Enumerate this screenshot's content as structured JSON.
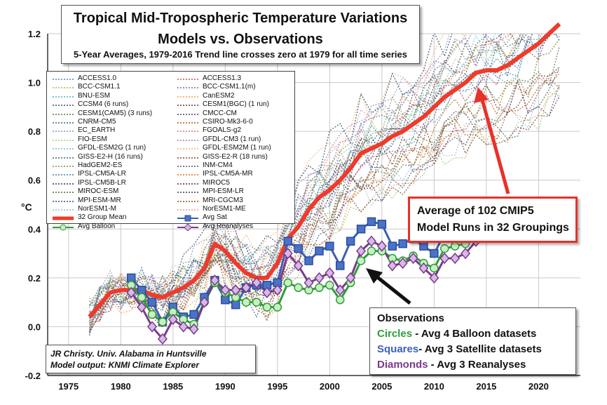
{
  "title": {
    "line1": "Tropical Mid-Tropospheric Temperature Variations",
    "line2": "Models vs. Observations",
    "subtitle": "5-Year Averages, 1979-2016 Trend line crosses zero at 1979 for all time series"
  },
  "callout": {
    "line1": "Average of 102 CMIP5",
    "line2": "Model Runs in 32 Groupings"
  },
  "observations_box": {
    "heading": "Observations",
    "rows": [
      {
        "key": "Circles",
        "desc": " - Avg 4 Balloon datasets",
        "color": "#2f9e3a"
      },
      {
        "key": "Squares",
        "desc": "- Avg 3 Satellite datasets",
        "color": "#3a5fb5"
      },
      {
        "key": "Diamonds",
        "desc": " - Avg 3 Reanalyses",
        "color": "#7a3a8c"
      }
    ]
  },
  "credit": {
    "line1": "JR Christy. Univ. Alabama in Huntsville",
    "line2": "Model output: KNMI Climate Explorer"
  },
  "legend": {
    "models": [
      {
        "name": "ACCESS1.0",
        "color": "#4f81bd"
      },
      {
        "name": "ACCESS1.3",
        "color": "#c0504d"
      },
      {
        "name": "BCC-CSM1.1",
        "color": "#9bbb59"
      },
      {
        "name": "BCC-CSM1.1(m)",
        "color": "#8064a2"
      },
      {
        "name": "BNU-ESM",
        "color": "#4bacc6"
      },
      {
        "name": "CanESM2",
        "color": "#f79646"
      },
      {
        "name": "CCSM4 (6 runs)",
        "color": "#2c4d75"
      },
      {
        "name": "CESM1(BGC) (1 run)",
        "color": "#772c2a"
      },
      {
        "name": "CESM1(CAM5) (3 runs)",
        "color": "#5f7530"
      },
      {
        "name": "CMCC-CM",
        "color": "#4d3b62"
      },
      {
        "name": "CNRM-CM5",
        "color": "#276a7c"
      },
      {
        "name": "CSIRO-Mk3-6-0",
        "color": "#b65708"
      },
      {
        "name": "EC_EARTH",
        "color": "#729aca"
      },
      {
        "name": "FGOALS-g2",
        "color": "#cd7371"
      },
      {
        "name": "FIO-ESM",
        "color": "#afc97a"
      },
      {
        "name": "GFDL-CM3 (1 run)",
        "color": "#9983b5"
      },
      {
        "name": "GFDL-ESM2G (1 run)",
        "color": "#6fbdd1"
      },
      {
        "name": "GFDL-ESM2M (1 run)",
        "color": "#f9ab6b"
      },
      {
        "name": "GISS-E2-H (16 runs)",
        "color": "#3a5f8f"
      },
      {
        "name": "GISS-E2-R (18 runs)",
        "color": "#953734"
      },
      {
        "name": "HadGEM2-ES",
        "color": "#76923c"
      },
      {
        "name": "INM-CM4",
        "color": "#5f497a"
      },
      {
        "name": "IPSL-CM5A-LR",
        "color": "#31859b"
      },
      {
        "name": "IPSL-CM5A-MR",
        "color": "#e36c09"
      },
      {
        "name": "IPSL-CM5B-LR",
        "color": "#17375e"
      },
      {
        "name": "MIROC5",
        "color": "#632523"
      },
      {
        "name": "MIROC-ESM",
        "color": "#4f6228"
      },
      {
        "name": "MPI-ESM-LR",
        "color": "#3f3151"
      },
      {
        "name": "MPI-ESM-MR",
        "color": "#205867"
      },
      {
        "name": "MRI-CGCM3",
        "color": "#974806"
      },
      {
        "name": "NorESM1-M",
        "color": "#8db3e2"
      },
      {
        "name": "NorESM1-ME",
        "color": "#d99694"
      }
    ],
    "specials": [
      {
        "name": "32 Group Mean",
        "color": "#ee3b2b",
        "marker": "none"
      },
      {
        "name": "Avg Sat",
        "color": "#3a5fb5",
        "marker": "square"
      },
      {
        "name": "Avg Balloon",
        "color": "#2f9e3a",
        "marker": "circle"
      },
      {
        "name": "Avg Reanalyses",
        "color": "#7a3a8c",
        "marker": "diamond"
      }
    ]
  },
  "chart_data": {
    "type": "line",
    "ylabel": "°C",
    "xlim": [
      1973,
      2024
    ],
    "ylim": [
      -0.2,
      1.2
    ],
    "xticks": [
      "1975",
      "1980",
      "1985",
      "1990",
      "1995",
      "2000",
      "2005",
      "2010",
      "2015",
      "2020"
    ],
    "yticks": [
      "-0.2",
      "0.0",
      "0.2",
      "0.4",
      "0.6",
      "0.8",
      "1.0",
      "1.2"
    ],
    "grid": true,
    "series": [
      {
        "name": "32 Group Mean",
        "color": "#ee3b2b",
        "width": 6,
        "x": [
          1977,
          1978,
          1979,
          1980,
          1981,
          1982,
          1983,
          1984,
          1985,
          1986,
          1987,
          1988,
          1989,
          1990,
          1991,
          1992,
          1993,
          1994,
          1995,
          1996,
          1997,
          1998,
          1999,
          2000,
          2001,
          2002,
          2003,
          2004,
          2005,
          2006,
          2007,
          2008,
          2009,
          2010,
          2011,
          2012,
          2013,
          2014,
          2015,
          2016,
          2017,
          2018,
          2019,
          2020,
          2021,
          2022
        ],
        "values": [
          0.04,
          0.09,
          0.14,
          0.15,
          0.15,
          0.15,
          0.13,
          0.12,
          0.14,
          0.16,
          0.19,
          0.24,
          0.34,
          0.31,
          0.26,
          0.22,
          0.2,
          0.2,
          0.26,
          0.36,
          0.41,
          0.48,
          0.53,
          0.56,
          0.6,
          0.65,
          0.71,
          0.73,
          0.75,
          0.78,
          0.8,
          0.83,
          0.86,
          0.9,
          0.94,
          0.97,
          1.0,
          1.04,
          1.05,
          1.05,
          1.07,
          1.1,
          1.13,
          1.16,
          1.2,
          1.24
        ]
      },
      {
        "name": "Avg Sat",
        "color": "#3a5fb5",
        "marker": "square",
        "x": [
          1981,
          1982,
          1983,
          1984,
          1985,
          1986,
          1987,
          1988,
          1989,
          1990,
          1991,
          1992,
          1993,
          1994,
          1995,
          1996,
          1997,
          1998,
          1999,
          2000,
          2001,
          2002,
          2003,
          2004,
          2005,
          2006,
          2007,
          2008,
          2009,
          2010,
          2011,
          2012,
          2013,
          2014,
          2015
        ],
        "values": [
          0.2,
          0.15,
          0.1,
          0.02,
          0.08,
          0.04,
          0.05,
          0.12,
          0.19,
          0.11,
          0.09,
          0.16,
          0.17,
          0.17,
          0.18,
          0.35,
          0.32,
          0.27,
          0.31,
          0.33,
          0.25,
          0.35,
          0.4,
          0.43,
          0.42,
          0.33,
          0.34,
          0.36,
          0.33,
          0.3,
          0.38,
          0.38,
          0.38,
          0.43,
          0.51
        ]
      },
      {
        "name": "Avg Balloon",
        "color": "#2f9e3a",
        "marker": "circle",
        "x": [
          1981,
          1982,
          1983,
          1984,
          1985,
          1986,
          1987,
          1988,
          1989,
          1990,
          1991,
          1992,
          1993,
          1994,
          1995,
          1996,
          1997,
          1998,
          1999,
          2000,
          2001,
          2002,
          2003,
          2004,
          2005,
          2006,
          2007,
          2008,
          2009,
          2010,
          2011,
          2012,
          2013,
          2014,
          2015
        ],
        "values": [
          0.17,
          0.12,
          0.05,
          0.02,
          0.06,
          0.03,
          0.01,
          0.1,
          0.18,
          0.14,
          0.12,
          0.1,
          0.1,
          0.08,
          0.08,
          0.18,
          0.16,
          0.15,
          0.16,
          0.17,
          0.11,
          0.18,
          0.27,
          0.31,
          0.31,
          0.28,
          0.27,
          0.29,
          0.26,
          0.24,
          0.32,
          0.33,
          0.34,
          0.38,
          0.47
        ]
      },
      {
        "name": "Avg Reanalyses",
        "color": "#7a3a8c",
        "marker": "diamond",
        "x": [
          1981,
          1982,
          1983,
          1984,
          1985,
          1986,
          1987,
          1988,
          1989,
          1990,
          1991,
          1992,
          1993,
          1994,
          1995,
          1996,
          1997,
          1998,
          1999,
          2000,
          2001,
          2002,
          2003,
          2004,
          2005,
          2006,
          2007,
          2008,
          2009,
          2010,
          2011,
          2012,
          2013,
          2014,
          2015
        ],
        "values": [
          0.14,
          0.08,
          0.0,
          -0.05,
          0.03,
          0.0,
          -0.01,
          0.1,
          0.19,
          0.15,
          0.15,
          0.16,
          0.18,
          0.14,
          0.15,
          0.3,
          0.25,
          0.18,
          0.2,
          0.22,
          0.15,
          0.2,
          0.31,
          0.35,
          0.33,
          0.25,
          0.26,
          0.28,
          0.24,
          0.2,
          0.28,
          0.28,
          0.3,
          0.35,
          0.44
        ]
      }
    ]
  }
}
